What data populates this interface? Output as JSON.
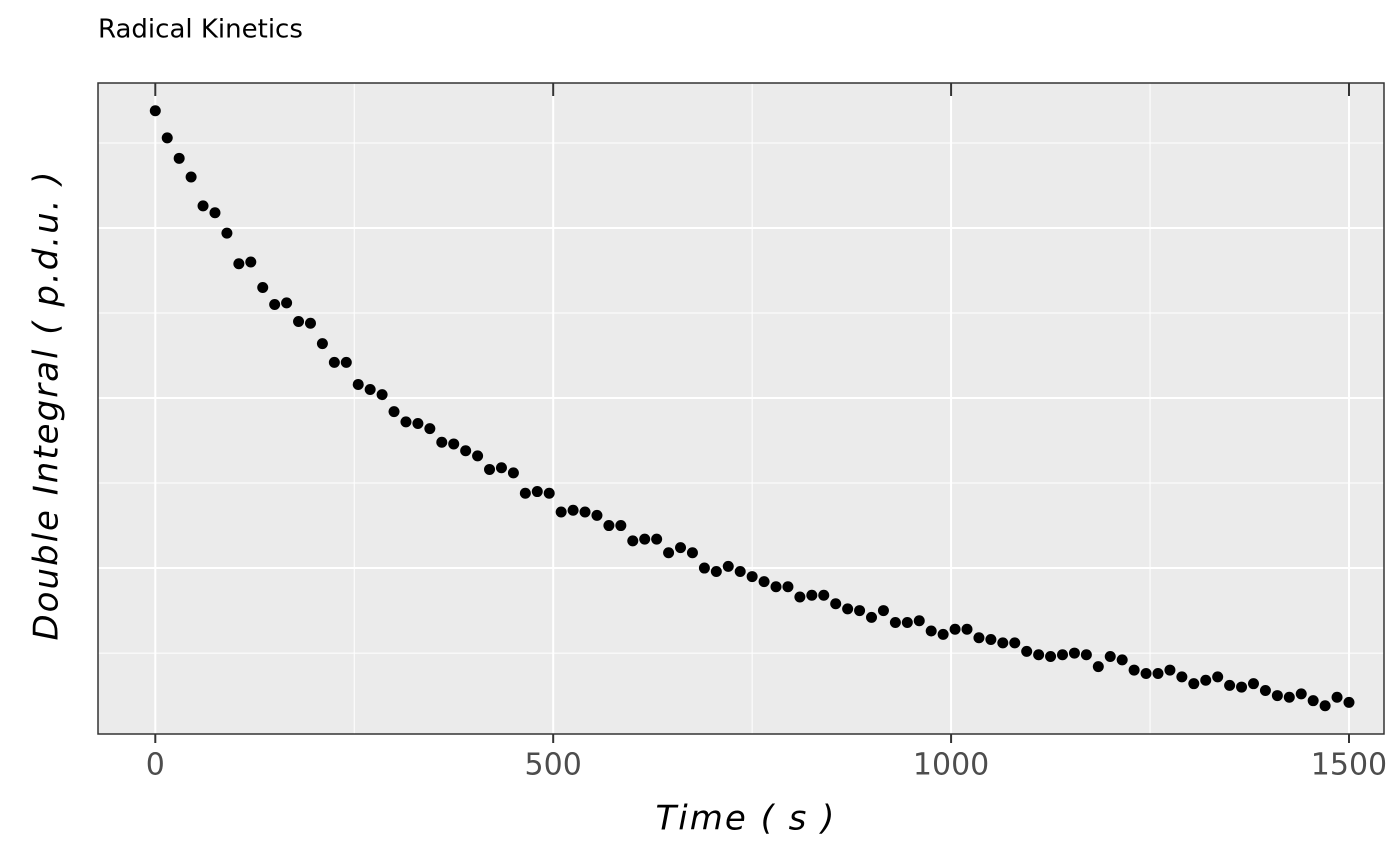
{
  "chart_data": {
    "type": "scatter",
    "title": "Radical Kinetics",
    "xlabel": "Time ( s )",
    "ylabel": "Double Integral ( p.d.u. )",
    "xlim": [
      -72,
      1544
    ],
    "xticks": [
      0,
      500,
      1000,
      1500
    ],
    "ylim": [
      0.024,
      3.853
    ],
    "ygrid": [
      0.5,
      1,
      1.5,
      2,
      2.5,
      3,
      3.5
    ],
    "grid": true,
    "color": "#000000",
    "x": [
      0,
      15,
      30,
      45,
      60,
      75,
      90,
      105,
      120,
      135,
      150,
      165,
      180,
      195,
      210,
      225,
      240,
      255,
      270,
      285,
      300,
      315,
      330,
      345,
      360,
      375,
      390,
      405,
      420,
      435,
      450,
      465,
      480,
      495,
      510,
      525,
      540,
      555,
      570,
      585,
      600,
      615,
      630,
      645,
      660,
      675,
      690,
      705,
      720,
      735,
      750,
      765,
      780,
      795,
      810,
      825,
      840,
      855,
      870,
      885,
      900,
      915,
      930,
      945,
      960,
      975,
      990,
      1005,
      1020,
      1035,
      1050,
      1065,
      1080,
      1095,
      1110,
      1125,
      1140,
      1155,
      1170,
      1185,
      1200,
      1215,
      1230,
      1245,
      1260,
      1275,
      1290,
      1305,
      1320,
      1335,
      1350,
      1365,
      1380,
      1395,
      1410,
      1425,
      1440,
      1455,
      1470,
      1485,
      1500
    ],
    "values": [
      3.69,
      3.53,
      3.41,
      3.3,
      3.13,
      3.09,
      2.97,
      2.79,
      2.8,
      2.65,
      2.55,
      2.56,
      2.45,
      2.44,
      2.32,
      2.21,
      2.21,
      2.08,
      2.05,
      2.02,
      1.92,
      1.86,
      1.85,
      1.82,
      1.74,
      1.73,
      1.69,
      1.66,
      1.58,
      1.59,
      1.56,
      1.44,
      1.45,
      1.44,
      1.33,
      1.34,
      1.33,
      1.31,
      1.25,
      1.25,
      1.16,
      1.17,
      1.17,
      1.09,
      1.12,
      1.09,
      1.0,
      0.98,
      1.01,
      0.98,
      0.95,
      0.92,
      0.89,
      0.89,
      0.83,
      0.84,
      0.84,
      0.79,
      0.76,
      0.75,
      0.71,
      0.75,
      0.68,
      0.68,
      0.69,
      0.63,
      0.61,
      0.64,
      0.64,
      0.59,
      0.58,
      0.56,
      0.56,
      0.51,
      0.49,
      0.48,
      0.49,
      0.5,
      0.49,
      0.42,
      0.48,
      0.46,
      0.4,
      0.38,
      0.38,
      0.4,
      0.36,
      0.32,
      0.34,
      0.36,
      0.31,
      0.3,
      0.32,
      0.28,
      0.25,
      0.24,
      0.26,
      0.22,
      0.19,
      0.24,
      0.21
    ]
  }
}
